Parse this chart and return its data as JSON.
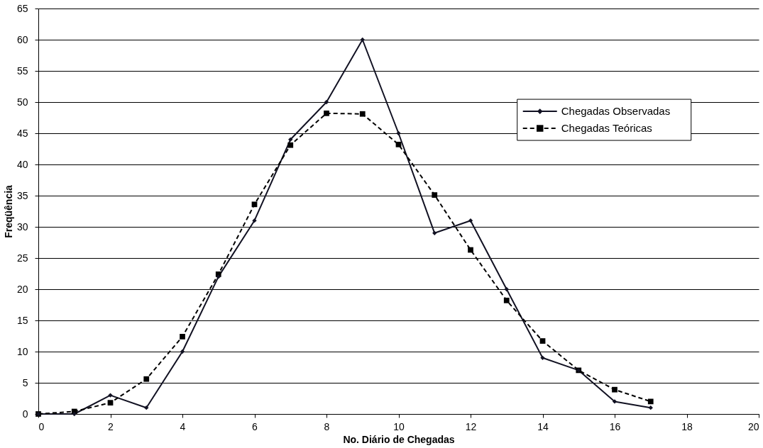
{
  "chart_data": {
    "type": "line",
    "xlabel": "No. Diário de Chegadas",
    "ylabel": "Freqüência",
    "x": [
      0,
      1,
      2,
      3,
      4,
      5,
      6,
      7,
      8,
      9,
      10,
      11,
      12,
      13,
      14,
      15,
      16,
      17
    ],
    "xlim": [
      0,
      20
    ],
    "xticks": [
      0,
      2,
      4,
      6,
      8,
      10,
      12,
      14,
      16,
      18,
      20
    ],
    "ylim": [
      0,
      65
    ],
    "yticks": [
      0,
      5,
      10,
      15,
      20,
      25,
      30,
      35,
      40,
      45,
      50,
      55,
      60,
      65
    ],
    "grid": "y",
    "legend": "right",
    "series": [
      {
        "name": "Chegadas Observadas",
        "color": "#111122",
        "marker": "diamond",
        "line_style": "solid",
        "values": [
          0,
          0,
          3,
          1,
          10,
          22,
          31,
          44,
          50,
          60,
          45,
          29,
          31,
          20,
          9,
          7,
          2,
          1
        ]
      },
      {
        "name": "Chegadas Teóricas",
        "color": "#000000",
        "marker": "square",
        "line_style": "dashed",
        "values": [
          0,
          0.4,
          1.8,
          5.6,
          12.4,
          22.4,
          33.6,
          43.1,
          48.2,
          48.1,
          43.2,
          35.1,
          26.3,
          18.2,
          11.7,
          7.0,
          3.9,
          2.0
        ]
      }
    ]
  }
}
